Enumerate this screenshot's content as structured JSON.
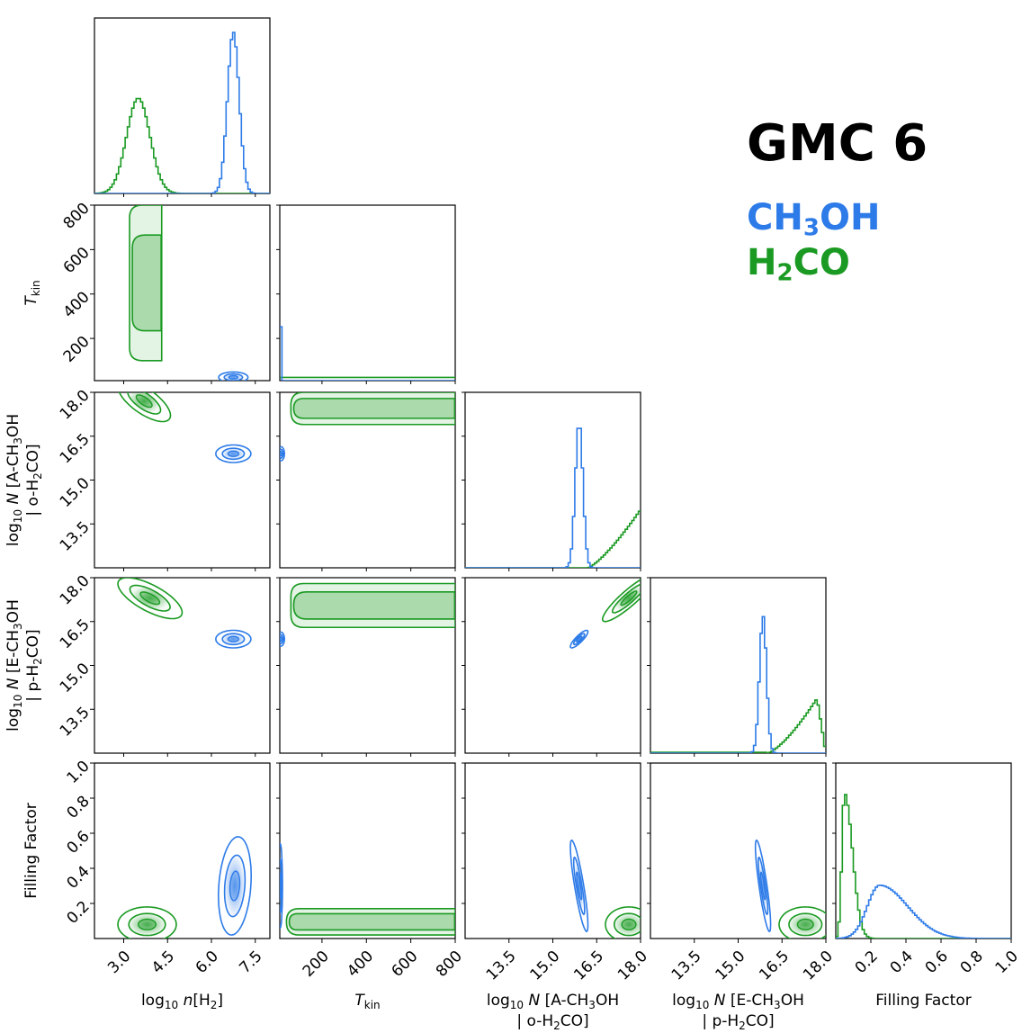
{
  "chart_data": {
    "type": "corner",
    "title": "GMC 6",
    "series": [
      {
        "name": "CH",
        "name_sub": "3",
        "name_tail": "OH",
        "color": "#2d7be8"
      },
      {
        "name": "H",
        "name_sub": "2",
        "name_tail": "CO",
        "color": "#1a9a22"
      }
    ],
    "parameters": [
      {
        "id": "logn",
        "label_parts": [
          [
            "log",
            ""
          ],
          [
            "10",
            "sub"
          ],
          [
            " ",
            ""
          ],
          [
            "n",
            "it"
          ],
          [
            "[H",
            ""
          ],
          [
            "2",
            "sub"
          ],
          [
            "]",
            ""
          ]
        ],
        "range": [
          2.0,
          8.0
        ],
        "ticks": [
          "3.0",
          "4.5",
          "6.0",
          "7.5"
        ]
      },
      {
        "id": "tkin",
        "label_parts": [
          [
            "T",
            "it"
          ],
          [
            "kin",
            "sub"
          ]
        ],
        "range": [
          10,
          800
        ],
        "ticks": [
          "200",
          "400",
          "600",
          "800"
        ]
      },
      {
        "id": "logNA",
        "label_parts": [
          [
            "log",
            ""
          ],
          [
            "10",
            "sub"
          ],
          [
            " ",
            ""
          ],
          [
            "N",
            "it"
          ],
          [
            " [A-CH",
            ""
          ],
          [
            "3",
            "sub"
          ],
          [
            "OH",
            ""
          ]
        ],
        "label_parts2": [
          [
            "| o-H",
            ""
          ],
          [
            "2",
            "sub"
          ],
          [
            "CO]",
            ""
          ]
        ],
        "range": [
          12.0,
          18.0
        ],
        "ticks": [
          "13.5",
          "15.0",
          "16.5",
          "18.0"
        ]
      },
      {
        "id": "logNE",
        "label_parts": [
          [
            "log",
            ""
          ],
          [
            "10",
            "sub"
          ],
          [
            " ",
            ""
          ],
          [
            "N",
            "it"
          ],
          [
            " [E-CH",
            ""
          ],
          [
            "3",
            "sub"
          ],
          [
            "OH",
            ""
          ]
        ],
        "label_parts2": [
          [
            "| p-H",
            ""
          ],
          [
            "2",
            "sub"
          ],
          [
            "CO]",
            ""
          ]
        ],
        "range": [
          12.0,
          18.0
        ],
        "ticks": [
          "13.5",
          "15.0",
          "16.5",
          "18.0"
        ]
      },
      {
        "id": "ff",
        "label_parts": [
          [
            "Filling Factor",
            ""
          ]
        ],
        "range": [
          0.0,
          1.0
        ],
        "ticks": [
          "0.2",
          "0.4",
          "0.6",
          "0.8",
          "1.0"
        ]
      }
    ],
    "y_ticks": {
      "tkin": [
        "200",
        "400",
        "600",
        "800"
      ],
      "logNA": [
        "13.5",
        "15.0",
        "16.5",
        "18.0"
      ],
      "logNE": [
        "13.5",
        "15.0",
        "16.5",
        "18.0"
      ],
      "ff": [
        "0.2",
        "0.4",
        "0.6",
        "0.8",
        "1.0"
      ]
    },
    "marginals": {
      "logn": {
        "CH3OH": {
          "mean": 6.75,
          "sd": 0.2,
          "peak": 1.0
        },
        "H2CO": {
          "mean": 3.5,
          "sd": 0.4,
          "peak": 0.59
        }
      },
      "tkin": {
        "CH3OH": {
          "mean": 12,
          "sd": 2,
          "peak": 0.98
        },
        "H2CO": {
          "flat": 0.02
        }
      },
      "logNA": {
        "CH3OH": {
          "mean": 15.9,
          "sd": 0.13,
          "peak": 0.9
        },
        "H2CO": {
          "start": 16.2,
          "end": 18.0,
          "peak": 0.36
        }
      },
      "logNE": {
        "CH3OH": {
          "mean": 15.85,
          "sd": 0.12,
          "peak": 0.85
        },
        "H2CO": {
          "start": 16.0,
          "max": 17.7,
          "end": 18.0,
          "peak": 0.34
        }
      },
      "ff": {
        "CH3OH": {
          "mode": 0.25,
          "peak": 0.33
        },
        "H2CO": {
          "mode": 0.05,
          "peak": 0.9
        }
      }
    },
    "pairs": [
      {
        "x": "logn",
        "y": "tkin",
        "CH3OH": {
          "cx": 6.75,
          "cy": 25,
          "sx": 0.25,
          "sy": 12,
          "rho": 0
        },
        "H2CO": {
          "band": true,
          "x0": 3.2,
          "x1": 4.3,
          "y0": 100,
          "y1": 800
        }
      },
      {
        "x": "logn",
        "y": "logNA",
        "CH3OH": {
          "cx": 6.75,
          "cy": 15.9,
          "sx": 0.3,
          "sy": 0.15,
          "rho": 0
        },
        "H2CO": {
          "cx": 3.7,
          "cy": 17.7,
          "sx": 0.45,
          "sy": 0.35,
          "rho": -0.7
        }
      },
      {
        "x": "tkin",
        "y": "logNA",
        "CH3OH": {
          "cx": 15,
          "cy": 15.9,
          "sx": 8,
          "sy": 0.12,
          "rho": 0
        },
        "H2CO": {
          "band": true,
          "x0": 60,
          "x1": 800,
          "y0": 16.9,
          "y1": 18.0
        }
      },
      {
        "x": "logn",
        "y": "logNE",
        "CH3OH": {
          "cx": 6.75,
          "cy": 15.9,
          "sx": 0.3,
          "sy": 0.15,
          "rho": 0
        },
        "H2CO": {
          "cx": 3.9,
          "cy": 17.3,
          "sx": 0.55,
          "sy": 0.35,
          "rho": -0.7
        }
      },
      {
        "x": "tkin",
        "y": "logNE",
        "CH3OH": {
          "cx": 15,
          "cy": 15.9,
          "sx": 8,
          "sy": 0.12,
          "rho": 0
        },
        "H2CO": {
          "band": true,
          "x0": 60,
          "x1": 800,
          "y0": 16.3,
          "y1": 17.8
        }
      },
      {
        "x": "logNA",
        "y": "logNE",
        "CH3OH": {
          "cx": 15.9,
          "cy": 15.9,
          "sx": 0.15,
          "sy": 0.15,
          "rho": 0.85
        },
        "H2CO": {
          "cx": 17.6,
          "cy": 17.3,
          "sx": 0.45,
          "sy": 0.4,
          "rho": 0.9
        }
      },
      {
        "x": "logn",
        "y": "ff",
        "CH3OH": {
          "cx": 6.8,
          "cy": 0.3,
          "sx": 0.28,
          "sy": 0.14,
          "rho": 0.2
        },
        "H2CO": {
          "cx": 3.8,
          "cy": 0.08,
          "sx": 0.5,
          "sy": 0.05,
          "rho": 0
        }
      },
      {
        "x": "tkin",
        "y": "ff",
        "CH3OH": {
          "cx": 12,
          "cy": 0.3,
          "sx": 5,
          "sy": 0.12,
          "rho": 0
        },
        "H2CO": {
          "band": true,
          "x0": 40,
          "x1": 800,
          "y0": 0.02,
          "y1": 0.17
        }
      },
      {
        "x": "logNA",
        "y": "ff",
        "CH3OH": {
          "cx": 15.9,
          "cy": 0.3,
          "sx": 0.15,
          "sy": 0.13,
          "rho": -0.85
        },
        "H2CO": {
          "cx": 17.6,
          "cy": 0.08,
          "sx": 0.4,
          "sy": 0.05,
          "rho": 0
        }
      },
      {
        "x": "logNE",
        "y": "ff",
        "CH3OH": {
          "cx": 15.85,
          "cy": 0.3,
          "sx": 0.13,
          "sy": 0.13,
          "rho": -0.85
        },
        "H2CO": {
          "cx": 17.3,
          "cy": 0.08,
          "sx": 0.45,
          "sy": 0.05,
          "rho": 0
        }
      }
    ]
  }
}
